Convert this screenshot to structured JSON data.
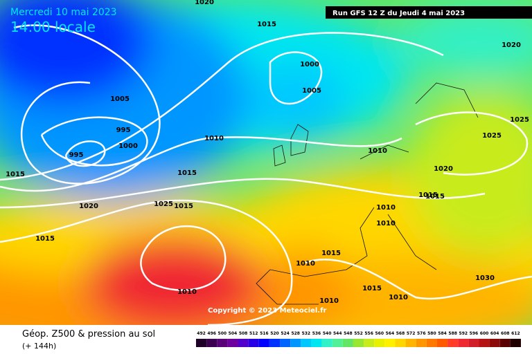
{
  "header": {
    "date": "Mercredi 10 mai 2023",
    "time": "14:00 locale",
    "run": "Run GFS 12 Z du Jeudi 4 mai 2023",
    "copyright": "Copyright © 2023 Meteociel.fr"
  },
  "legend": {
    "title": "Géop. Z500 & pression au sol",
    "lead": "(+ 144h)",
    "ticks": [
      492,
      496,
      500,
      504,
      508,
      512,
      516,
      520,
      524,
      528,
      532,
      536,
      540,
      544,
      548,
      552,
      556,
      560,
      564,
      568,
      572,
      576,
      580,
      584,
      588,
      592,
      596,
      600,
      604,
      608,
      612
    ],
    "colors": [
      "#1e0028",
      "#3c0050",
      "#5a0078",
      "#6e00a0",
      "#5000c8",
      "#2800e6",
      "#0000ff",
      "#0032ff",
      "#0064ff",
      "#0096ff",
      "#00c8ff",
      "#00e6f0",
      "#32f0c8",
      "#50f096",
      "#64e664",
      "#96e632",
      "#c8eb1e",
      "#e6f000",
      "#fff000",
      "#ffd700",
      "#ffb400",
      "#ff9600",
      "#ff7800",
      "#ff5a00",
      "#ff3c28",
      "#f02832",
      "#d21e28",
      "#b41414",
      "#8c0a0a",
      "#5a0000",
      "#1e0000"
    ]
  },
  "isobar_labels": [
    1020,
    1015,
    1020,
    1000,
    1005,
    1005,
    995,
    1000,
    995,
    1010,
    1010,
    1025,
    1025,
    1020,
    1015,
    1015,
    1015,
    1015,
    1020,
    1025,
    1015,
    1010,
    1010,
    1015,
    1015,
    1010,
    1030,
    1010,
    1015,
    1010,
    1010
  ]
}
